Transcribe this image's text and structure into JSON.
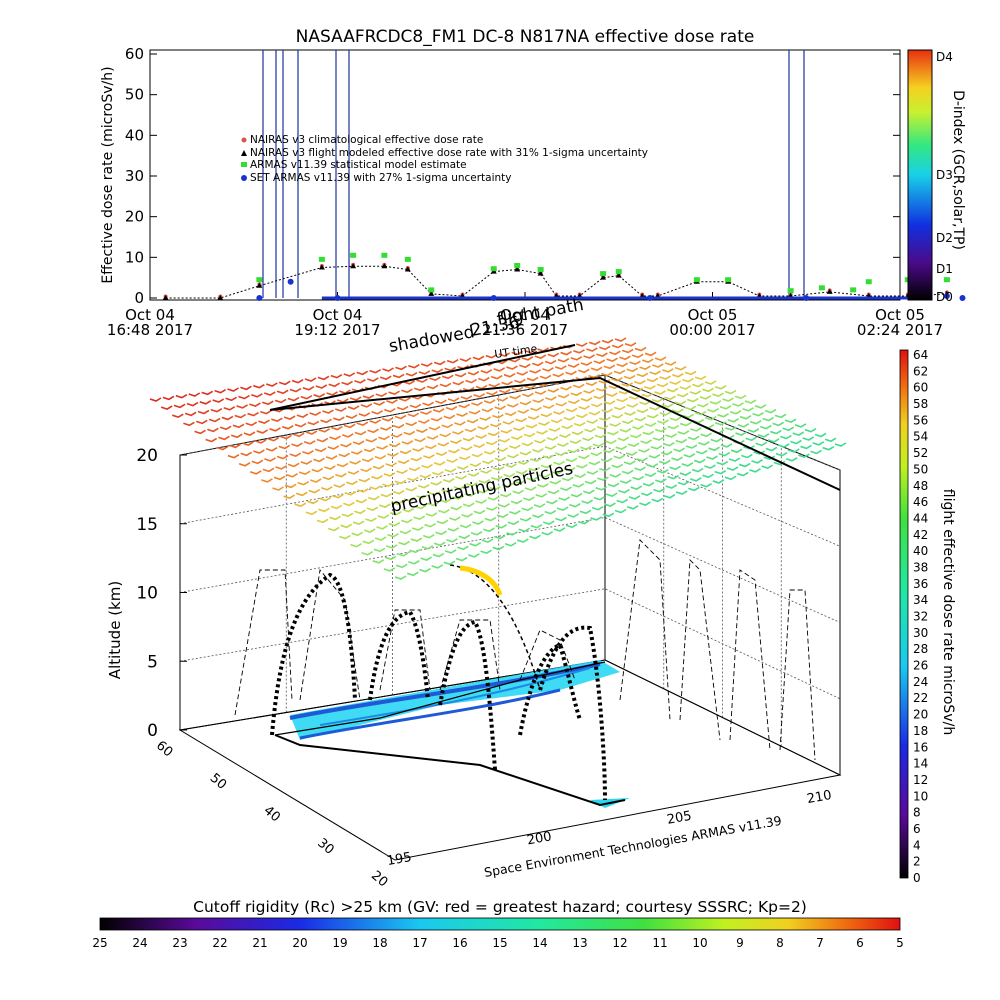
{
  "chart_data": [
    {
      "type": "scatter",
      "title": "NASAAFRCDC8_FM1 DC-8   N817NA effective dose rate",
      "ylabel": "Effective dose rate (microSv/h)",
      "ylim": [
        0,
        60
      ],
      "yticks": [
        0,
        10,
        20,
        30,
        40,
        50,
        60
      ],
      "xticks": [
        {
          "l1": "Oct 04",
          "l2": "16:48 2017"
        },
        {
          "l1": "Oct 04",
          "l2": "19:12 2017"
        },
        {
          "l1": "Oct 04",
          "l2": "21:36 2017"
        },
        {
          "l1": "Oct 05",
          "l2": "00:00 2017"
        },
        {
          "l1": "Oct 05",
          "l2": "02:24 2017"
        }
      ],
      "legend": [
        {
          "text": "NAIRAS v3 climatological effective dose rate",
          "color": "#d9534f",
          "marker": "circle"
        },
        {
          "text": "NAIRAS v3 flight modeled effective dose rate with 31% 1-sigma uncertainty",
          "color": "#000000",
          "marker": "triangle"
        },
        {
          "text": "ARMAS v11.39 statistical model estimate",
          "color": "#33dd33",
          "marker": "square"
        },
        {
          "text": "SET ARMAS v11.39 with 27% 1-sigma uncertainty",
          "color": "#1a33cc",
          "marker": "dot"
        }
      ],
      "series": [
        {
          "name": "NAIRAS v3 flight modeled effective dose rate with 31% 1-sigma uncertainty",
          "x": [
            -2.2,
            -1.5,
            -1.0,
            -0.2,
            0.2,
            0.6,
            0.9,
            1.2,
            1.6,
            2.0,
            2.3,
            2.6,
            2.8,
            3.1,
            3.4,
            3.6,
            3.9,
            4.1,
            4.6,
            5.0,
            5.4,
            5.8,
            6.3,
            6.8,
            7.3,
            7.8
          ],
          "y": [
            0,
            0,
            3,
            7.5,
            7.8,
            7.8,
            7,
            1,
            0.5,
            6.5,
            7,
            6,
            0.5,
            0.5,
            5,
            5.5,
            0.5,
            0.5,
            4,
            4,
            0.5,
            0.5,
            1.5,
            0.5,
            0.5,
            1
          ]
        },
        {
          "name": "ARMAS v11.39 statistical model estimate",
          "x": [
            -1.0,
            -0.2,
            0.2,
            0.6,
            0.9,
            1.2,
            2.0,
            2.3,
            2.6,
            3.4,
            3.6,
            4.6,
            5.0,
            5.8,
            6.2,
            6.6,
            6.8,
            7.3,
            7.8
          ],
          "y": [
            4.5,
            9.5,
            10.5,
            10.5,
            9.5,
            2,
            7.2,
            8,
            7,
            6,
            6.5,
            4.5,
            4.5,
            1.8,
            2.5,
            2,
            4,
            4.5,
            4.5
          ]
        },
        {
          "name": "SET ARMAS v11.39 with 27% 1-sigma uncertainty",
          "x": [
            -1.0,
            -0.6,
            0.0,
            2.0,
            4.0,
            6.0,
            7.5,
            7.8,
            8.0
          ],
          "y": [
            0,
            4,
            0,
            0,
            0,
            0,
            2.5,
            0.5,
            0
          ]
        }
      ],
      "d_index_axis": {
        "label": "D-index (GCR,solar,TP)",
        "ticks": [
          "D0",
          "D1",
          "D2",
          "D3",
          "D4"
        ]
      }
    },
    {
      "type": "scatter",
      "zlabel": "Altitude (km)",
      "zticks": [
        0,
        5,
        10,
        15,
        20
      ],
      "lat_ticks": [
        60,
        50,
        40,
        30,
        20
      ],
      "lon_ticks": [
        195,
        200,
        205,
        210
      ],
      "annotations": [
        "shadowed",
        "21:36",
        "flight path",
        "UT time",
        "precipitating particles"
      ],
      "credit": "Space Environment Technologies ARMAS v11.39",
      "colorbar": {
        "label": "flight effective dose rate microSv/h",
        "ticks": [
          0,
          2,
          4,
          6,
          8,
          10,
          12,
          14,
          16,
          18,
          20,
          22,
          24,
          26,
          28,
          30,
          32,
          34,
          36,
          38,
          40,
          42,
          44,
          46,
          48,
          50,
          52,
          54,
          56,
          58,
          60,
          62,
          64
        ]
      }
    }
  ],
  "rigidity_bar": {
    "title": "Cutoff rigidity (Rc) >25 km (GV: red = greatest hazard; courtesy SSSRC; Kp=2)",
    "ticks": [
      25,
      24,
      23,
      22,
      21,
      20,
      19,
      18,
      17,
      16,
      15,
      14,
      13,
      12,
      11,
      10,
      9,
      8,
      7,
      6,
      5
    ]
  }
}
